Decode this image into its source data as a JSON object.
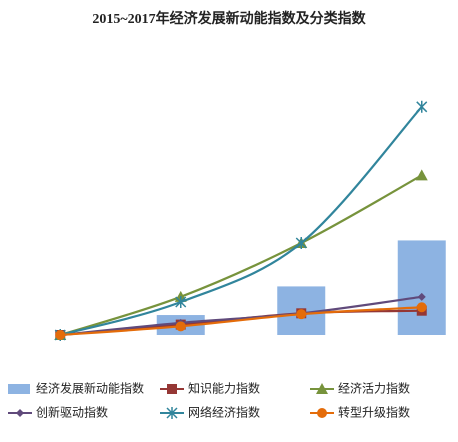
{
  "chart_data": {
    "type": "bar-line",
    "title": "2015~2017年经济发展新动能指数及分类指数",
    "categories": [
      null,
      null,
      null,
      null
    ],
    "ylim": [
      100,
      440
    ],
    "series": [
      {
        "name": "经济发展新动能指数",
        "type": "bar",
        "color": "#8db3e2",
        "values": [
          100,
          123,
          156,
          209
        ]
      },
      {
        "name": "知识能力指数",
        "type": "line",
        "marker": "square",
        "color": "#953735",
        "values": [
          100,
          112,
          125,
          128
        ]
      },
      {
        "name": "经济活力指数",
        "type": "line",
        "marker": "triangle",
        "color": "#77933c",
        "values": [
          100,
          144,
          206,
          284
        ]
      },
      {
        "name": "创新驱动指数",
        "type": "line",
        "marker": "diamond",
        "color": "#604a7b",
        "values": [
          100,
          114,
          125,
          144
        ]
      },
      {
        "name": "网络经济指数",
        "type": "line",
        "marker": "star",
        "color": "#31859c",
        "values": [
          100,
          138,
          206,
          363
        ]
      },
      {
        "name": "转型升级指数",
        "type": "line",
        "marker": "circle",
        "color": "#e46c0a",
        "values": [
          100,
          110,
          124,
          132
        ]
      }
    ]
  }
}
